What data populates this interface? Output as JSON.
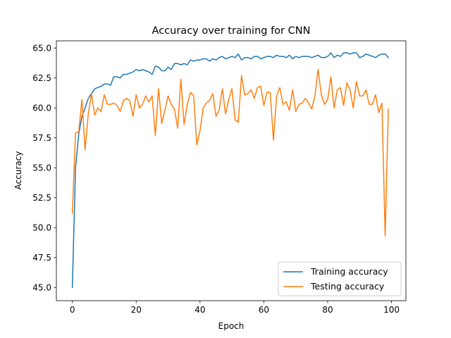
{
  "chart_data": {
    "type": "line",
    "title": "Accuracy over training for CNN",
    "xlabel": "Epoch",
    "ylabel": "Accuracy",
    "xlim": [
      -5,
      104.5
    ],
    "ylim": [
      43.9,
      65.6
    ],
    "xticks": [
      0,
      20,
      40,
      60,
      80,
      100
    ],
    "yticks": [
      45.0,
      47.5,
      50.0,
      52.5,
      55.0,
      57.5,
      60.0,
      62.5,
      65.0
    ],
    "grid": false,
    "legend_position": "lower-right",
    "series": [
      {
        "name": "Training accuracy",
        "color": "#1f77b4",
        "x": [
          0,
          1,
          2,
          3,
          4,
          5,
          6,
          7,
          8,
          9,
          10,
          11,
          12,
          13,
          14,
          15,
          16,
          17,
          18,
          19,
          20,
          21,
          22,
          23,
          24,
          25,
          26,
          27,
          28,
          29,
          30,
          31,
          32,
          33,
          34,
          35,
          36,
          37,
          38,
          39,
          40,
          41,
          42,
          43,
          44,
          45,
          46,
          47,
          48,
          49,
          50,
          51,
          52,
          53,
          54,
          55,
          56,
          57,
          58,
          59,
          60,
          61,
          62,
          63,
          64,
          65,
          66,
          67,
          68,
          69,
          70,
          71,
          72,
          73,
          74,
          75,
          76,
          77,
          78,
          79,
          80,
          81,
          82,
          83,
          84,
          85,
          86,
          87,
          88,
          89,
          90,
          91,
          92,
          93,
          94,
          95,
          96,
          97,
          98,
          99
        ],
        "y": [
          45.0,
          55.0,
          57.8,
          59.3,
          60.0,
          60.8,
          61.2,
          61.6,
          61.7,
          61.8,
          62.0,
          62.0,
          61.9,
          62.6,
          62.6,
          62.5,
          62.8,
          62.8,
          62.9,
          63.0,
          63.2,
          63.1,
          63.2,
          63.1,
          63.0,
          62.8,
          63.5,
          63.4,
          63.1,
          63.1,
          63.4,
          63.2,
          63.7,
          63.7,
          63.6,
          63.7,
          63.6,
          64.0,
          63.9,
          64.0,
          64.0,
          64.1,
          64.1,
          63.9,
          64.1,
          64.0,
          64.2,
          64.3,
          64.1,
          64.2,
          64.3,
          64.2,
          64.5,
          64.0,
          64.2,
          64.2,
          64.1,
          64.3,
          64.3,
          64.1,
          64.2,
          64.3,
          64.3,
          64.2,
          64.4,
          64.3,
          64.3,
          64.2,
          64.4,
          64.1,
          64.3,
          64.2,
          64.3,
          64.3,
          64.3,
          64.2,
          64.3,
          64.4,
          64.2,
          64.2,
          64.3,
          64.6,
          64.2,
          64.4,
          64.3,
          64.6,
          64.6,
          64.5,
          64.6,
          64.6,
          64.2,
          64.3,
          64.5,
          64.4,
          64.3,
          64.2,
          64.4,
          64.5,
          64.5,
          64.2
        ]
      },
      {
        "name": "Testing accuracy",
        "color": "#ff7f0e",
        "x": [
          0,
          1,
          2,
          3,
          4,
          5,
          6,
          7,
          8,
          9,
          10,
          11,
          12,
          13,
          14,
          15,
          16,
          17,
          18,
          19,
          20,
          21,
          22,
          23,
          24,
          25,
          26,
          27,
          28,
          29,
          30,
          31,
          32,
          33,
          34,
          35,
          36,
          37,
          38,
          39,
          40,
          41,
          42,
          43,
          44,
          45,
          46,
          47,
          48,
          49,
          50,
          51,
          52,
          53,
          54,
          55,
          56,
          57,
          58,
          59,
          60,
          61,
          62,
          63,
          64,
          65,
          66,
          67,
          68,
          69,
          70,
          71,
          72,
          73,
          74,
          75,
          76,
          77,
          78,
          79,
          80,
          81,
          82,
          83,
          84,
          85,
          86,
          87,
          88,
          89,
          90,
          91,
          92,
          93,
          94,
          95,
          96,
          97,
          98,
          99
        ],
        "y": [
          51.2,
          57.9,
          58.0,
          60.7,
          56.5,
          59.5,
          61.2,
          59.4,
          60.0,
          59.7,
          61.1,
          60.3,
          60.3,
          60.4,
          60.2,
          59.7,
          60.6,
          60.8,
          60.6,
          59.3,
          61.1,
          60.0,
          60.3,
          61.0,
          60.5,
          61.0,
          57.7,
          61.6,
          58.7,
          59.8,
          61.0,
          60.3,
          59.9,
          58.3,
          62.4,
          58.6,
          60.3,
          61.3,
          61.0,
          56.9,
          58.1,
          60.0,
          60.4,
          60.6,
          61.2,
          59.3,
          59.8,
          61.6,
          59.5,
          60.7,
          61.6,
          59.0,
          58.8,
          62.7,
          61.1,
          61.2,
          61.5,
          60.8,
          61.7,
          61.8,
          60.2,
          61.3,
          61.3,
          57.3,
          61.0,
          61.7,
          60.3,
          60.5,
          59.8,
          61.5,
          59.7,
          60.3,
          60.4,
          60.8,
          60.4,
          59.9,
          61.0,
          63.2,
          61.1,
          60.3,
          60.7,
          62.6,
          60.0,
          61.5,
          61.7,
          60.2,
          62.1,
          61.5,
          60.0,
          62.2,
          61.0,
          61.0,
          61.5,
          60.3,
          60.3,
          61.1,
          59.6,
          60.4,
          49.3,
          59.9
        ]
      }
    ]
  }
}
